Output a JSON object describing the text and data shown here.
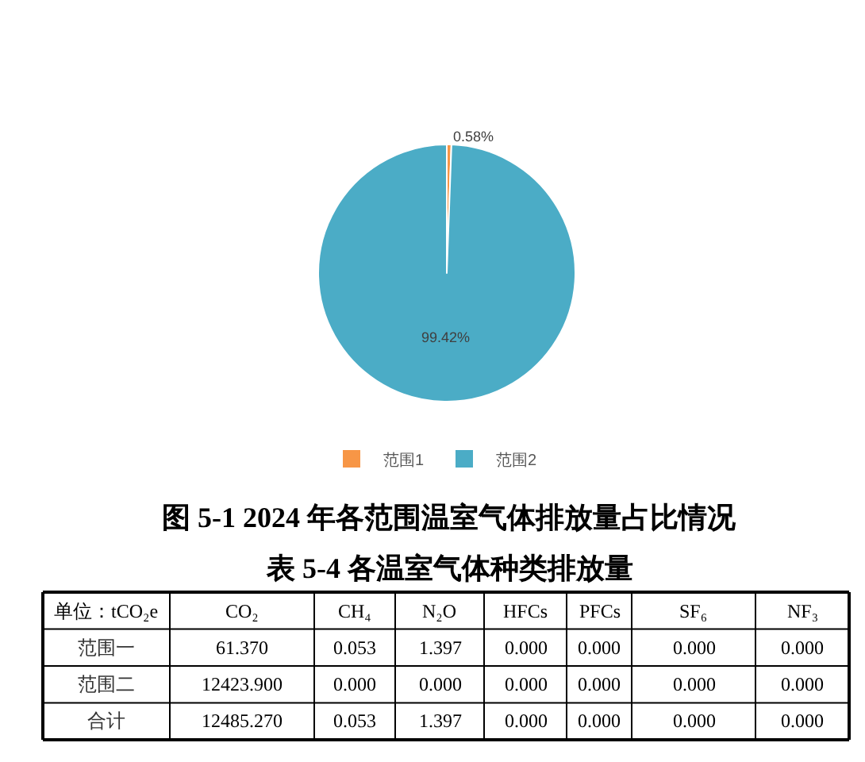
{
  "chart_data": [
    {
      "type": "pie",
      "title": "图 5-1 2024 年各范围温室气体排放量占比情况",
      "categories": [
        "范围1",
        "范围2"
      ],
      "values": [
        0.58,
        99.42
      ],
      "colors": [
        "#f79646",
        "#4bacc6"
      ],
      "value_labels": [
        "0.58%",
        "99.42%"
      ],
      "legend": "bottom"
    },
    {
      "type": "other",
      "title": "表 5-4 各温室气体种类排放量",
      "ylabel": "单位：tCO₂e",
      "categories": [
        "CO₂",
        "CH₄",
        "N₂O",
        "HFCs",
        "PFCs",
        "SF₆",
        "NF₃"
      ],
      "y_categories": [
        "范围一",
        "范围二",
        "合计"
      ],
      "cell_labels": [
        [
          "61.370",
          "0.053",
          "1.397",
          "0.000",
          "0.000",
          "0.000",
          "0.000"
        ],
        [
          "12423.900",
          "0.000",
          "0.000",
          "0.000",
          "0.000",
          "0.000",
          "0.000"
        ],
        [
          "12485.270",
          "0.053",
          "1.397",
          "0.000",
          "0.000",
          "0.000",
          "0.000"
        ]
      ]
    }
  ]
}
